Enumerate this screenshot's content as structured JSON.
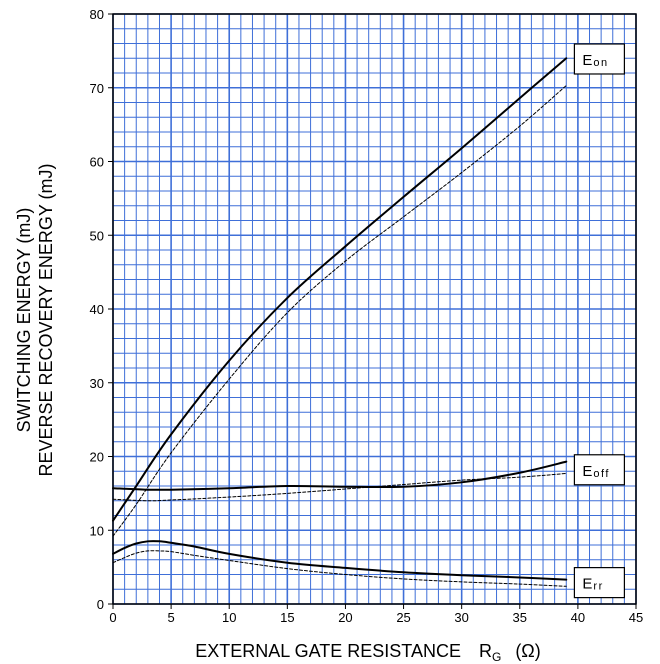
{
  "chart_data": {
    "type": "line",
    "xlabel": {
      "main": "EXTERNAL GATE RESISTANCE",
      "symbol": "R",
      "subscript": "G",
      "unit": "(Ω)"
    },
    "ylabel": {
      "line1": "SWITCHING ENERGY   (mJ)",
      "line2": "REVERSE RECOVERY ENERGY    (mJ)"
    },
    "xlim": [
      0,
      45
    ],
    "ylim": [
      0,
      80
    ],
    "x_ticks": [
      0,
      5,
      10,
      15,
      20,
      25,
      30,
      35,
      40,
      45
    ],
    "y_ticks": [
      0,
      10,
      20,
      30,
      40,
      50,
      60,
      70,
      80
    ],
    "grid": true,
    "grid_minor": {
      "x_step": 1,
      "y_step": 2
    },
    "grid_color": "#3f6fd8",
    "series": [
      {
        "name": "Eon",
        "label_main": "E",
        "label_sub": "on",
        "style": "solid",
        "x": [
          0,
          2,
          5,
          10,
          15,
          20,
          25,
          30,
          35,
          39
        ],
        "y": [
          11.3,
          16,
          23,
          33,
          41.5,
          48.5,
          55.2,
          61.8,
          68.6,
          74
        ]
      },
      {
        "name": "Eon (dashed)",
        "style": "dashed",
        "x": [
          0,
          2,
          5,
          10,
          15,
          20,
          25,
          30,
          35,
          39
        ],
        "y": [
          9.2,
          13.5,
          20.5,
          30.5,
          39.5,
          46.5,
          52.5,
          58.5,
          64.8,
          70.3
        ]
      },
      {
        "name": "Eoff",
        "label_main": "E",
        "label_sub": "off",
        "style": "solid",
        "x": [
          0,
          3,
          5,
          10,
          15,
          20,
          25,
          30,
          35,
          39
        ],
        "y": [
          15.7,
          15.5,
          15.5,
          15.7,
          16,
          15.9,
          15.9,
          16.5,
          17.8,
          19.3
        ]
      },
      {
        "name": "Eoff (dashed)",
        "style": "dashed",
        "x": [
          0,
          3,
          5,
          10,
          15,
          20,
          25,
          30,
          35,
          39
        ],
        "y": [
          14.2,
          14,
          14.1,
          14.5,
          15,
          15.6,
          16.2,
          16.8,
          17.2,
          17.7
        ]
      },
      {
        "name": "Err",
        "label_main": "E",
        "label_sub": "rr",
        "style": "solid",
        "x": [
          0,
          1,
          2,
          3,
          4,
          5,
          7,
          10,
          15,
          20,
          25,
          30,
          35,
          39
        ],
        "y": [
          6.8,
          7.6,
          8.2,
          8.5,
          8.5,
          8.3,
          7.8,
          6.8,
          5.6,
          4.9,
          4.3,
          3.9,
          3.6,
          3.3
        ]
      },
      {
        "name": "Err (dashed)",
        "style": "dashed",
        "x": [
          0,
          1,
          2,
          3,
          4,
          5,
          7,
          10,
          15,
          20,
          25,
          30,
          35,
          39
        ],
        "y": [
          5.6,
          6.3,
          6.9,
          7.2,
          7.2,
          7.1,
          6.6,
          5.9,
          4.8,
          4,
          3.4,
          3,
          2.7,
          2.4
        ]
      }
    ],
    "labels": [
      {
        "series": "Eon",
        "box_x": 39.7,
        "box_y": 73.9
      },
      {
        "series": "Eoff",
        "box_x": 39.7,
        "box_y": 18.2
      },
      {
        "series": "Err",
        "box_x": 39.7,
        "box_y": 2.9
      }
    ]
  }
}
